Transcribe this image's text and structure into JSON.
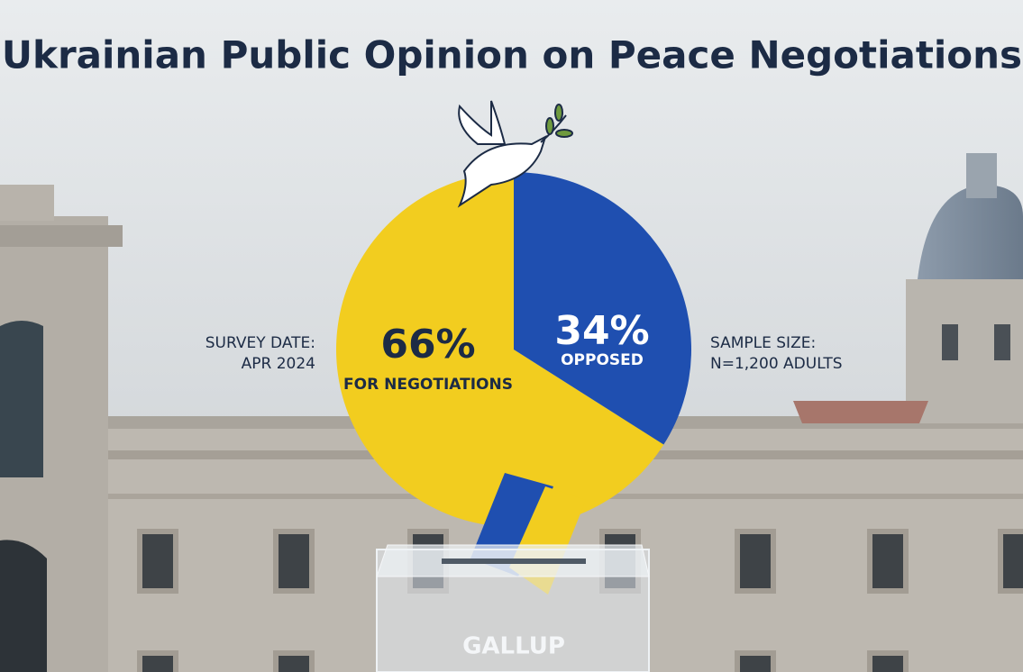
{
  "chart_data": {
    "type": "pie",
    "title": "Ukrainian Public Opinion on Peace Negotiations",
    "categories": [
      "FOR NEGOTIATIONS",
      "OPPOSED"
    ],
    "values": [
      66,
      34
    ],
    "value_labels": [
      "66%",
      "34%"
    ],
    "colors": [
      "#f2cd1f",
      "#1f4fb0"
    ],
    "annotations": [
      "SURVEY DATE:",
      "APR 2024",
      "SAMPLE SIZE:",
      "N=1,200 ADULTS",
      "GALLUP"
    ]
  }
}
